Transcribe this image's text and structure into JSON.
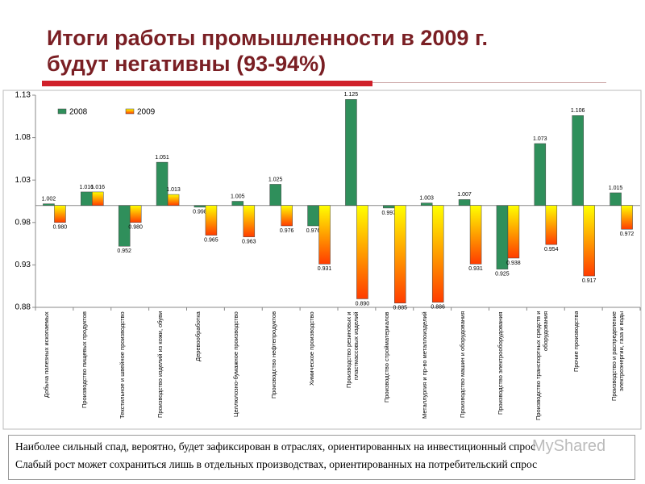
{
  "title_lines": [
    "Итоги работы промышленности в 2009 г.",
    "будут негативны (93-94%)"
  ],
  "chart_data": {
    "type": "bar",
    "categories": [
      "Добыча полезных ископаемых",
      "Производство пищевых продуктов",
      "Текстильное и швейное производство",
      "Производство изделий из кожи, обуви",
      "Деревообработка",
      "Целлюлозно-бумажное производство",
      "Производство нефтепродуктов",
      "Химическое производство",
      "Производство резиновых и пластмассовых изделий",
      "Производство стройматериалов",
      "Металлургия и пр-во металлоизделий",
      "Производство машин и оборудования",
      "Производство электрооборудования",
      "Производство транспортных средств и оборудования",
      "Прочие производства",
      "Производство и распределение электроэнергии, газа и воды"
    ],
    "series": [
      {
        "name": "2008",
        "color": "#2f8f5b",
        "values": [
          1.002,
          1.016,
          0.952,
          1.051,
          0.998,
          1.005,
          1.025,
          0.976,
          1.125,
          0.997,
          1.003,
          1.007,
          0.925,
          1.073,
          1.106,
          1.015
        ],
        "value_labels": [
          "1.002",
          "1.016",
          "0.952",
          "1.051",
          "0.998",
          "1.005",
          "1.025",
          "0.976",
          "1.125",
          "0.997",
          "1.003",
          "1.007",
          "0.925",
          "1.073",
          "1.106",
          "1.015"
        ]
      },
      {
        "name": "2009",
        "color": "#ff3c00",
        "values": [
          0.98,
          1.016,
          0.98,
          1.013,
          0.965,
          0.963,
          0.976,
          0.931,
          0.89,
          0.885,
          0.886,
          0.931,
          0.938,
          0.954,
          0.917,
          0.972
        ],
        "value_labels": [
          "0.980",
          "1.016",
          "0.980",
          "1.013",
          "0.965",
          "0.963",
          "0.976",
          "0.931",
          "0.890",
          "0.885",
          "0.886",
          "0.931",
          "0.938",
          "0.954",
          "0.917",
          "0.972"
        ]
      }
    ],
    "ylim": [
      0.88,
      1.13
    ],
    "yticks": [
      0.88,
      0.93,
      0.98,
      1.03,
      1.08,
      1.13
    ],
    "base": 1.0,
    "legend": "top-left"
  },
  "notes": [
    "Наиболее сильный спад, вероятно, будет зафиксирован в отраслях, ориентированных на инвестиционный спрос",
    "Слабый рост может сохраниться лишь в отдельных производствах, ориентированных на потребительский спрос"
  ],
  "watermark": "MyShared"
}
